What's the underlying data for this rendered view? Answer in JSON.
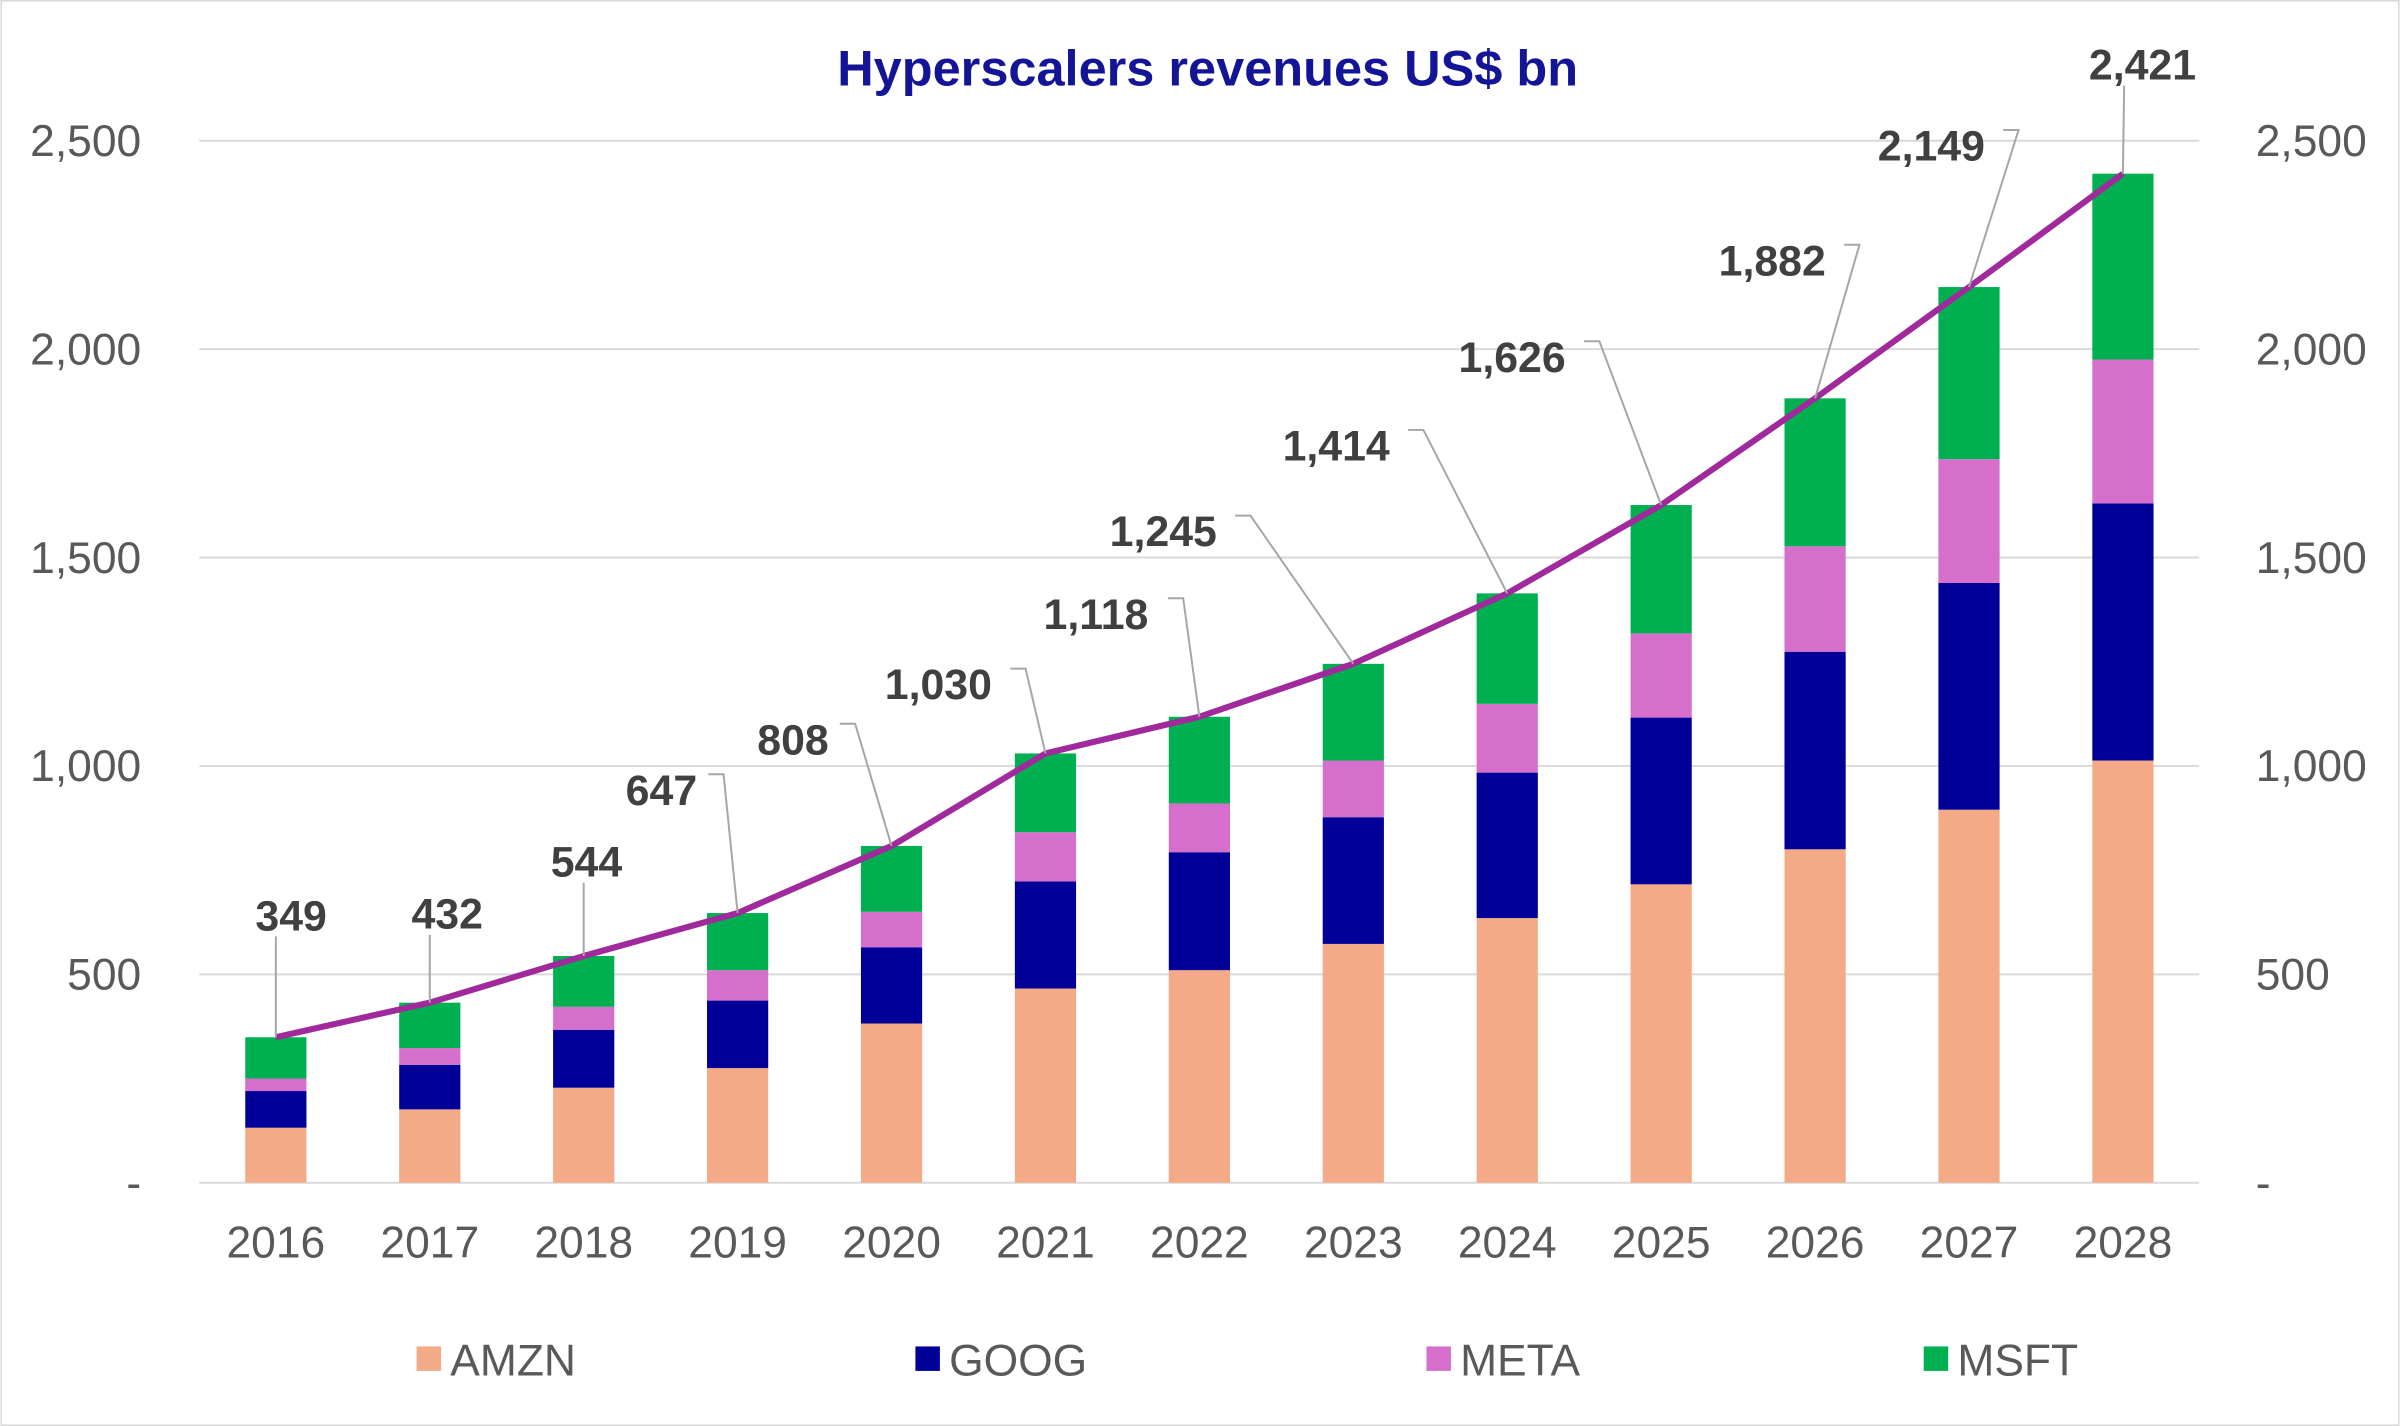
{
  "chart_data": {
    "type": "bar",
    "stacked": true,
    "title": "Hyperscalers revenues US$ bn",
    "xlabel": "",
    "ylabel": "",
    "ylim": [
      0,
      2500
    ],
    "y_ticks": [
      0,
      500,
      1000,
      1500,
      2000,
      2500
    ],
    "y_tick_labels": [
      "-",
      "500",
      "1,000",
      "1,500",
      "2,000",
      "2,500"
    ],
    "secondary_y_tick_labels": [
      "-",
      "500",
      "1,000",
      "1,500",
      "2,000",
      "2,500"
    ],
    "grid": true,
    "legend_position": "bottom",
    "categories": [
      "2016",
      "2017",
      "2018",
      "2019",
      "2020",
      "2021",
      "2022",
      "2023",
      "2024",
      "2025",
      "2026",
      "2027",
      "2028"
    ],
    "series": [
      {
        "name": "AMZN",
        "color": "#F4A987",
        "values": [
          132,
          176,
          228,
          275,
          382,
          466,
          510,
          573,
          635,
          716,
          800,
          895,
          1013
        ]
      },
      {
        "name": "GOOG",
        "color": "#000099",
        "values": [
          88,
          107,
          139,
          162,
          183,
          257,
          283,
          304,
          349,
          400,
          474,
          544,
          617
        ]
      },
      {
        "name": "META",
        "color": "#D66FCB",
        "values": [
          30,
          40,
          55,
          73,
          85,
          118,
          117,
          136,
          165,
          202,
          253,
          297,
          345
        ]
      },
      {
        "name": "MSFT",
        "color": "#00B050",
        "values": [
          99,
          109,
          122,
          137,
          158,
          189,
          208,
          232,
          265,
          308,
          355,
          413,
          446
        ]
      }
    ],
    "total_line": {
      "color": "#A02A9C",
      "values": [
        349,
        432,
        544,
        647,
        808,
        1030,
        1118,
        1245,
        1414,
        1626,
        1882,
        2149,
        2421
      ],
      "labels": [
        "349",
        "432",
        "544",
        "647",
        "808",
        "1,030",
        "1,118",
        "1,245",
        "1,414",
        "1,626",
        "1,882",
        "2,149",
        "2,421"
      ]
    }
  }
}
